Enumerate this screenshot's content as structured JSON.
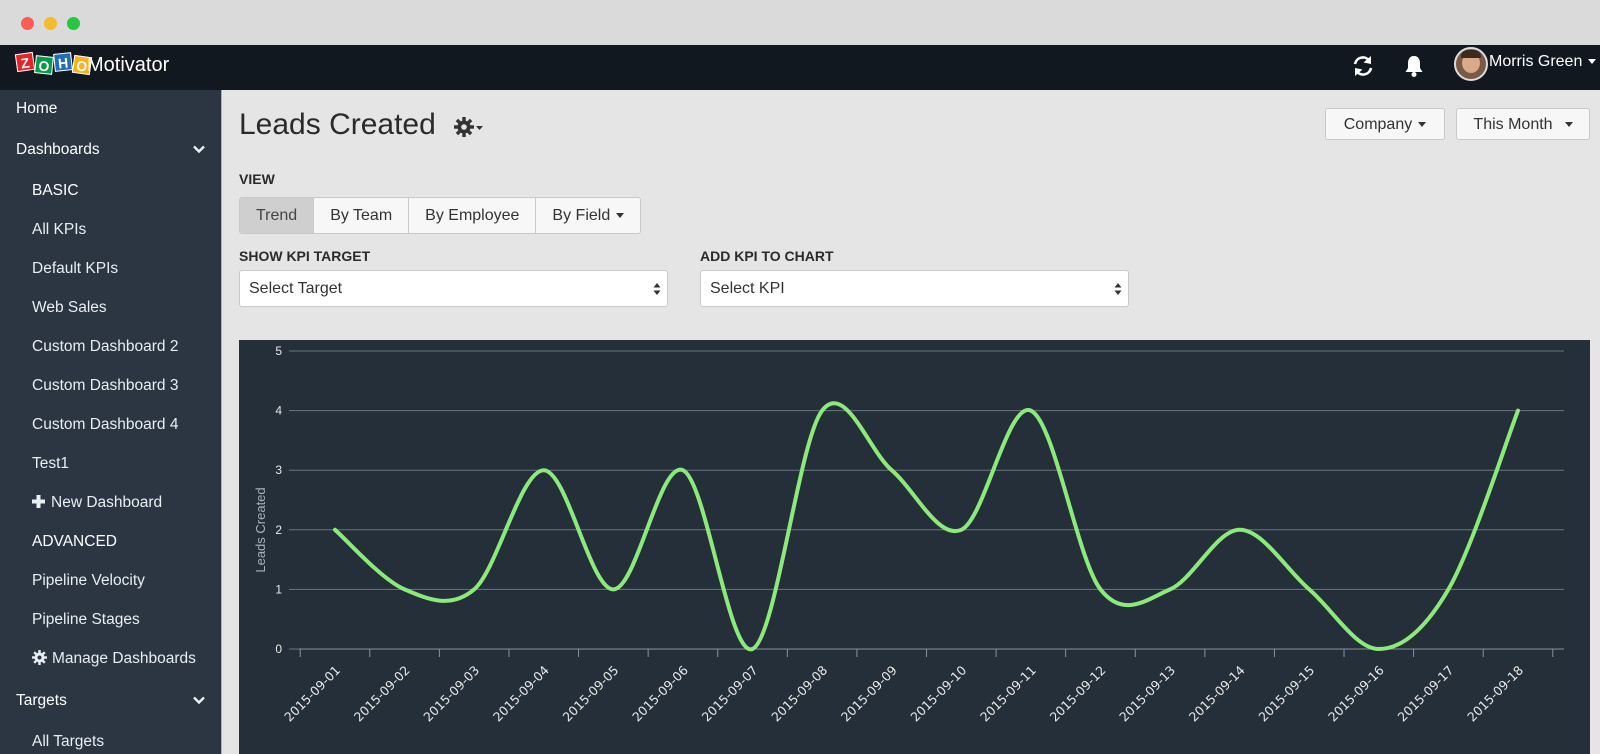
{
  "window": {
    "title": "Zoho Motivator"
  },
  "topbar": {
    "app_name": "Motivator",
    "logo_letters": [
      "Z",
      "O",
      "H",
      "O"
    ],
    "user_name": "Morris Green",
    "icons": [
      "refresh-icon",
      "bell-icon"
    ]
  },
  "sidebar": {
    "home": "Home",
    "dashboards": "Dashboards",
    "basic": "BASIC",
    "basic_items": [
      "All KPIs",
      "Default KPIs",
      "Web Sales",
      "Custom Dashboard 2",
      "Custom Dashboard 3",
      "Custom Dashboard 4",
      "Test1"
    ],
    "new_dashboard": "New Dashboard",
    "advanced": "ADVANCED",
    "advanced_items": [
      "Pipeline Velocity",
      "Pipeline Stages"
    ],
    "manage_dashboards": "Manage Dashboards",
    "targets": "Targets",
    "all_targets": "All Targets"
  },
  "main": {
    "title": "Leads Created",
    "company_button": "Company",
    "period_button": "This Month",
    "view_label": "VIEW",
    "view_tabs": [
      "Trend",
      "By Team",
      "By Employee",
      "By Field"
    ],
    "active_tab": "Trend",
    "kpi_target_label": "SHOW KPI TARGET",
    "kpi_target_value": "Select Target",
    "add_kpi_label": "ADD KPI TO CHART",
    "add_kpi_value": "Select KPI"
  },
  "colors": {
    "line": "#8bea7a",
    "chart_bg": "#252f39",
    "sidebar_bg": "#2b3642",
    "topbar_bg": "#111820"
  },
  "chart_data": {
    "type": "line",
    "ylabel": "Leads Created",
    "xlabel": "",
    "ylim": [
      0,
      5
    ],
    "yticks": [
      0,
      1,
      2,
      3,
      4,
      5
    ],
    "grid": true,
    "categories": [
      "2015-09-01",
      "2015-09-02",
      "2015-09-03",
      "2015-09-04",
      "2015-09-05",
      "2015-09-06",
      "2015-09-07",
      "2015-09-08",
      "2015-09-09",
      "2015-09-10",
      "2015-09-11",
      "2015-09-12",
      "2015-09-13",
      "2015-09-14",
      "2015-09-15",
      "2015-09-16",
      "2015-09-17",
      "2015-09-18"
    ],
    "values": [
      2,
      1,
      1,
      3,
      1,
      3,
      0,
      4,
      3,
      2,
      4,
      1,
      1,
      2,
      1,
      0,
      1,
      4
    ]
  }
}
